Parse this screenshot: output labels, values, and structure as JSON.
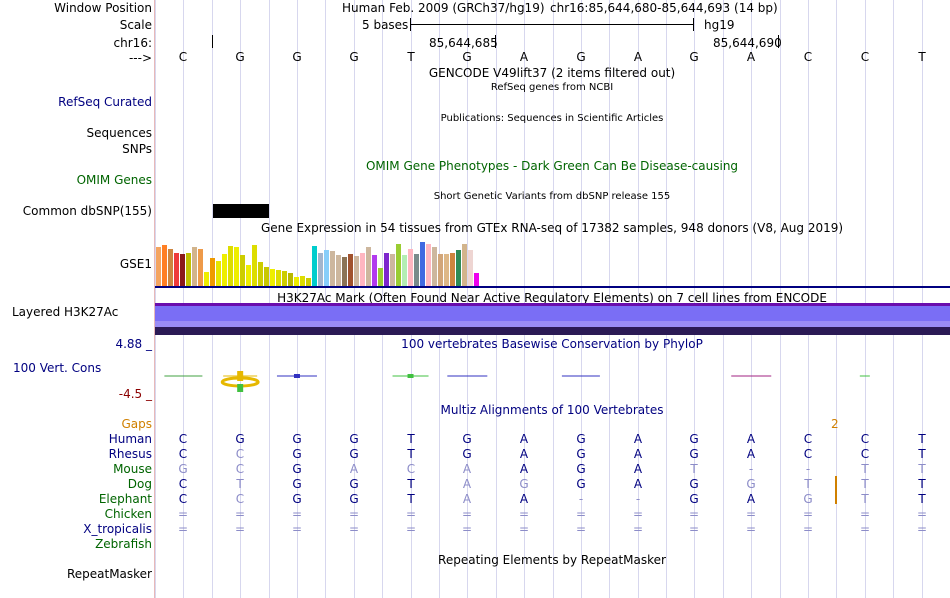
{
  "header": {
    "window_position_label": "Window Position",
    "scale_label": "Scale",
    "chrom_label": "chr16:",
    "strand_label": "--->",
    "assembly_text": "Human Feb. 2009 (GRCh37/hg19)",
    "position_text": "chr16:85,644,680-85,644,693 (14 bp)",
    "scale_text": "5 bases",
    "scale_db": "hg19",
    "coord_1": "85,644,685",
    "coord_2": "85,644,690"
  },
  "sequence": [
    "C",
    "G",
    "G",
    "G",
    "T",
    "G",
    "A",
    "G",
    "A",
    "G",
    "A",
    "C",
    "C",
    "T"
  ],
  "tracks": {
    "gencode_title": "GENCODE V49lift37 (2 items filtered out)",
    "refseq_label": "RefSeq Curated",
    "refseq_title": "RefSeq genes from NCBI",
    "sequences_label": "Sequences",
    "sequences_title": "Publications: Sequences in Scientific Articles",
    "snps_label": "SNPs",
    "omim_title": "OMIM Gene Phenotypes - Dark Green Can Be Disease-causing",
    "omim_label": "OMIM Genes",
    "dbsnp_title": "Short Genetic Variants from dbSNP release 155",
    "dbsnp_label": "Common dbSNP(155)",
    "gtex_title": "Gene Expression in 54 tissues from GTEx RNA-seq of 17382 samples, 948 donors (V8, Aug 2019)",
    "gse_label": "GSE1",
    "h3k_title": "H3K27Ac Mark (Often Found Near Active Regulatory Elements) on 7 cell lines from ENCODE",
    "h3k_label": "Layered H3K27Ac",
    "cons_max": "4.88 _",
    "cons_label": "100 Vert. Cons",
    "cons_min": "-4.5 _",
    "cons_title": "100 vertebrates Basewise Conservation by PhyloP",
    "multiz_title": "Multiz Alignments of 100 Vertebrates",
    "gaps_label": "Gaps",
    "gap_count": "2",
    "repeat_title": "Repeating Elements by RepeatMasker",
    "repeat_label": "RepeatMasker"
  },
  "alignment": [
    {
      "species": "Human",
      "color": "#000080",
      "bases": [
        "C",
        "G",
        "G",
        "G",
        "T",
        "G",
        "A",
        "G",
        "A",
        "G",
        "A",
        "C",
        "C",
        "T"
      ],
      "dim": [
        0,
        0,
        0,
        0,
        0,
        0,
        0,
        0,
        0,
        0,
        0,
        0,
        0,
        0
      ]
    },
    {
      "species": "Rhesus",
      "color": "#000080",
      "bases": [
        "C",
        "C",
        "G",
        "G",
        "T",
        "G",
        "A",
        "G",
        "A",
        "G",
        "A",
        "C",
        "C",
        "T"
      ],
      "dim": [
        0,
        1,
        0,
        0,
        0,
        0,
        0,
        0,
        0,
        0,
        0,
        0,
        0,
        0
      ]
    },
    {
      "species": "Mouse",
      "color": "#006400",
      "bases": [
        "G",
        "C",
        "G",
        "A",
        "C",
        "A",
        "A",
        "G",
        "A",
        "T",
        "-",
        "-",
        "T",
        "T"
      ],
      "dim": [
        1,
        1,
        0,
        1,
        1,
        1,
        0,
        0,
        0,
        1,
        1,
        1,
        1,
        1
      ]
    },
    {
      "species": "Dog",
      "color": "#006400",
      "bases": [
        "C",
        "T",
        "G",
        "G",
        "T",
        "A",
        "G",
        "G",
        "A",
        "G",
        "G",
        "T",
        "T",
        "T"
      ],
      "dim": [
        0,
        1,
        0,
        0,
        0,
        1,
        1,
        0,
        0,
        0,
        1,
        1,
        1,
        0
      ]
    },
    {
      "species": "Elephant",
      "color": "#006400",
      "bases": [
        "C",
        "C",
        "G",
        "G",
        "T",
        "A",
        "A",
        "-",
        "-",
        "G",
        "A",
        "G",
        "T",
        "T"
      ],
      "dim": [
        0,
        1,
        0,
        0,
        0,
        1,
        0,
        1,
        1,
        0,
        0,
        1,
        1,
        0
      ]
    },
    {
      "species": "Chicken",
      "color": "#006400",
      "bases": [
        "=",
        "=",
        "=",
        "=",
        "=",
        "=",
        "=",
        "=",
        "=",
        "=",
        "=",
        "=",
        "=",
        "="
      ],
      "dim": [
        1,
        1,
        1,
        1,
        1,
        1,
        1,
        1,
        1,
        1,
        1,
        1,
        1,
        1
      ]
    },
    {
      "species": "X_tropicalis",
      "color": "#000080",
      "bases": [
        "=",
        "=",
        "=",
        "=",
        "=",
        "=",
        "=",
        "=",
        "=",
        "=",
        "=",
        "=",
        "=",
        "="
      ],
      "dim": [
        1,
        1,
        1,
        1,
        1,
        1,
        1,
        1,
        1,
        1,
        1,
        1,
        1,
        1
      ]
    },
    {
      "species": "Zebrafish",
      "color": "#006400",
      "bases": [],
      "dim": []
    }
  ],
  "colors": {
    "navy": "#000080",
    "green": "#006400",
    "orange": "#d08000",
    "dim_base": "#8c8cc8",
    "h3k_main": "#7a6ef5",
    "h3k_dark": "#2b1a55",
    "h3k_top": "#6a0dad"
  },
  "gtex_values": [
    0.85,
    0.9,
    0.8,
    0.72,
    0.7,
    0.72,
    0.85,
    0.8,
    0.3,
    0.6,
    0.55,
    0.7,
    0.88,
    0.85,
    0.68,
    0.45,
    0.9,
    0.52,
    0.42,
    0.38,
    0.34,
    0.32,
    0.28,
    0.2,
    0.22,
    0.18,
    0.88,
    0.72,
    0.78,
    0.75,
    0.68,
    0.62,
    0.7,
    0.65,
    0.72,
    0.85,
    0.68,
    0.4,
    0.72,
    0.7,
    0.92,
    0.68,
    0.8,
    0.7,
    0.95,
    0.92,
    0.85,
    0.7,
    0.7,
    0.72,
    0.78,
    0.92,
    0.78,
    0.28
  ],
  "gtex_colors": [
    "#f4a460",
    "#ff7f24",
    "#cd853f",
    "#ee3b3b",
    "#8b1a1a",
    "#c0c000",
    "#d2b48c",
    "#ee9a49",
    "#eeee00",
    "#ee9a00",
    "#e6e600",
    "#eeee00",
    "#dddd00",
    "#eeee00",
    "#cdcd00",
    "#eeee00",
    "#dddd00",
    "#cdcd00",
    "#c8c800",
    "#eeee00",
    "#dddd00",
    "#cdcd00",
    "#b8b800",
    "#eeee00",
    "#dddd00",
    "#cdcd00",
    "#00cdcd",
    "#a2b5cd",
    "#87cefa",
    "#cdb79e",
    "#cdb79e",
    "#8b7355",
    "#a0522d",
    "#cdb79e",
    "#ffb6c1",
    "#cdb79e",
    "#b23aee",
    "#9acd32",
    "#7d26cd",
    "#cdb79e",
    "#9acd32",
    "#b4eeb4",
    "#ffb6c1",
    "#7a8b8b",
    "#4169e1",
    "#ffb6c1",
    "#cdb79e",
    "#d2a679",
    "#deb887",
    "#cd853f",
    "#2e8b57",
    "#d2b48c",
    "#eed5d2",
    "#ee00ee"
  ],
  "cons_marks": [
    {
      "x": 0.5,
      "w": 38,
      "c": "#40a040",
      "dir": "up",
      "h": 2
    },
    {
      "x": 1.5,
      "w": 34,
      "c": "#e6b800",
      "dir": "up",
      "h": 10
    },
    {
      "x": 2.5,
      "w": 40,
      "c": "#3030c0",
      "dir": "up",
      "h": 4
    },
    {
      "x": 4.5,
      "w": 36,
      "c": "#40c040",
      "dir": "up",
      "h": 4
    },
    {
      "x": 5.5,
      "w": 40,
      "c": "#3030c0",
      "dir": "up",
      "h": 2
    },
    {
      "x": 7.5,
      "w": 38,
      "c": "#3030c0",
      "dir": "up",
      "h": 2
    },
    {
      "x": 10.5,
      "w": 40,
      "c": "#a02080",
      "dir": "up",
      "h": 2
    },
    {
      "x": 12.5,
      "w": 10,
      "c": "#40c040",
      "dir": "up",
      "h": 2
    }
  ]
}
